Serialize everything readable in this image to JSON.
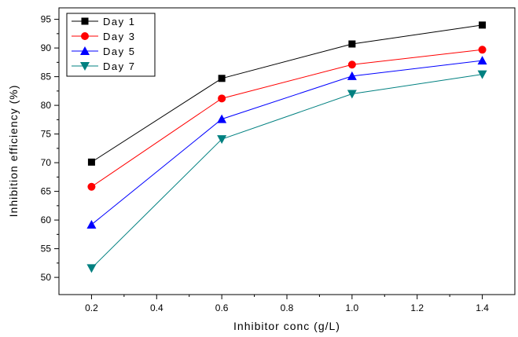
{
  "chart_data": {
    "type": "line",
    "xlabel": "Inhibitor conc (g/L)",
    "ylabel": "Inhibition efficiency (%)",
    "xlim": [
      0.1,
      1.5
    ],
    "ylim": [
      47,
      97
    ],
    "x_ticks": [
      0.2,
      0.4,
      0.6,
      0.8,
      1.0,
      1.2,
      1.4
    ],
    "y_ticks": [
      50,
      55,
      60,
      65,
      70,
      75,
      80,
      85,
      90,
      95
    ],
    "x": [
      0.2,
      0.6,
      1.0,
      1.4
    ],
    "legend_position": "top-left",
    "grid": false,
    "series": [
      {
        "name": "Day 1",
        "values": [
          70.1,
          84.7,
          90.7,
          94.0
        ],
        "color": "#000000",
        "marker": "square"
      },
      {
        "name": "Day 3",
        "values": [
          65.8,
          81.2,
          87.1,
          89.7
        ],
        "color": "#ff0000",
        "marker": "circle"
      },
      {
        "name": "Day 5",
        "values": [
          59.2,
          77.6,
          85.1,
          87.8
        ],
        "color": "#0000ff",
        "marker": "triangle-up"
      },
      {
        "name": "Day 7",
        "values": [
          51.6,
          74.1,
          82.0,
          85.4
        ],
        "color": "#008080",
        "marker": "triangle-down"
      }
    ]
  }
}
